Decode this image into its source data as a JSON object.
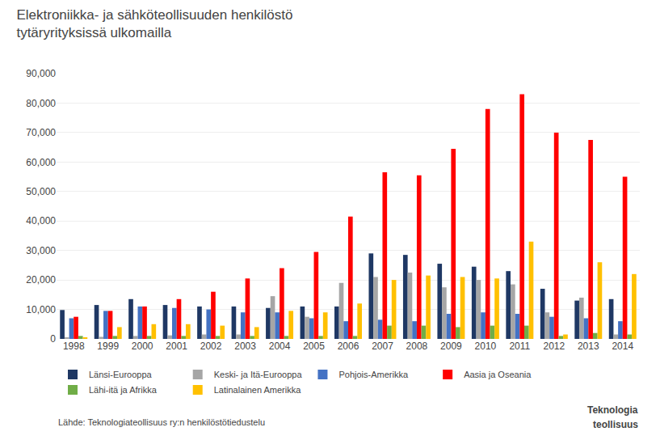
{
  "chart_data": {
    "type": "bar",
    "title": "Elektroniikka- ja sähköteollisuuden henkilöstö",
    "subtitle": "tytäryrityksissä ulkomailla",
    "categories": [
      "1998",
      "1999",
      "2000",
      "2001",
      "2002",
      "2003",
      "2004",
      "2005",
      "2006",
      "2007",
      "2008",
      "2009",
      "2010",
      "2011",
      "2012",
      "2013",
      "2014"
    ],
    "series": [
      {
        "name": "Länsi-Eurooppa",
        "color": "#1F3864",
        "values": [
          9800,
          11500,
          13500,
          11500,
          11000,
          11000,
          10500,
          11000,
          11000,
          29000,
          28500,
          25500,
          24500,
          23000,
          17000,
          13000,
          13500
        ]
      },
      {
        "name": "Keski- ja Itä-Eurooppa",
        "color": "#A6A6A6",
        "values": [
          500,
          700,
          1000,
          1200,
          1500,
          1500,
          14500,
          7500,
          19000,
          21000,
          22500,
          17500,
          20000,
          18500,
          9000,
          14000,
          1500
        ]
      },
      {
        "name": "Pohjois-Amerikka",
        "color": "#4472C4",
        "values": [
          7000,
          9500,
          11000,
          10500,
          10000,
          9000,
          9000,
          7000,
          6000,
          6500,
          6000,
          8500,
          9000,
          8500,
          7500,
          7000,
          6000
        ]
      },
      {
        "name": "Aasia ja Oseania",
        "color": "#FF0000",
        "values": [
          7500,
          9500,
          11000,
          13500,
          16000,
          20500,
          24000,
          29500,
          41500,
          56500,
          55500,
          64500,
          78000,
          83000,
          70000,
          67500,
          55000
        ]
      },
      {
        "name": "Lähi-itä ja Afrikka",
        "color": "#70AD47",
        "values": [
          1000,
          1000,
          1000,
          1000,
          1000,
          1000,
          1000,
          1000,
          1000,
          4500,
          4500,
          4000,
          4500,
          4500,
          1000,
          2000,
          1500
        ]
      },
      {
        "name": "Latinalainen Amerikka",
        "color": "#FFC000",
        "values": [
          500,
          4000,
          5000,
          5000,
          4500,
          4000,
          9500,
          9000,
          12000,
          20000,
          21500,
          21000,
          20500,
          33000,
          1500,
          26000,
          22000
        ]
      }
    ],
    "ylim": [
      0,
      90000
    ],
    "yticks": [
      0,
      {
        "value": 10000,
        "label": "10,000"
      },
      {
        "value": 20000,
        "label": "20,000"
      },
      {
        "value": 30000,
        "label": "30,000"
      },
      {
        "value": 40000,
        "label": "40,000"
      },
      {
        "value": 50000,
        "label": "50,000"
      },
      {
        "value": 60000,
        "label": "60,000"
      },
      {
        "value": 70000,
        "label": "70,000"
      },
      {
        "value": 80000,
        "label": "80,000"
      },
      {
        "value": 90000,
        "label": "90,000"
      }
    ],
    "grid": true,
    "legend": "bottom",
    "annotations": [
      "Lähde: Teknologiateollisuus ry:n henkilöstötiedustelu",
      "Teknologia",
      "teollisuus"
    ]
  }
}
